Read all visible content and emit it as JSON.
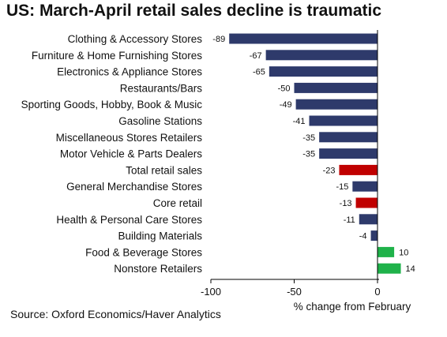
{
  "chart_data": {
    "type": "bar",
    "orientation": "horizontal",
    "title": "US: March-April retail sales decline is traumatic",
    "xlabel": "% change from February",
    "ylabel": "",
    "xlim": [
      -100,
      14
    ],
    "xticks": [
      -100,
      -50,
      0
    ],
    "grid": false,
    "legend": "none",
    "categories": [
      "Clothing & Accessory Stores",
      "Furniture & Home Furnishing Stores",
      "Electronics & Appliance Stores",
      "Restaurants/Bars",
      "Sporting Goods, Hobby, Book & Music",
      "Gasoline Stations",
      "Miscellaneous Stores Retailers",
      "Motor Vehicle & Parts Dealers",
      "Total retail sales",
      "General Merchandise Stores",
      "Core retail",
      "Health & Personal Care Stores",
      "Building Materials",
      "Food & Beverage Stores",
      "Nonstore Retailers"
    ],
    "values": [
      -89,
      -67,
      -65,
      -50,
      -49,
      -41,
      -35,
      -35,
      -23,
      -15,
      -13,
      -11,
      -4,
      10,
      14
    ],
    "bar_colors": [
      "#2e3a6b",
      "#2e3a6b",
      "#2e3a6b",
      "#2e3a6b",
      "#2e3a6b",
      "#2e3a6b",
      "#2e3a6b",
      "#2e3a6b",
      "#c00000",
      "#2e3a6b",
      "#c00000",
      "#2e3a6b",
      "#2e3a6b",
      "#1fb24a",
      "#1fb24a"
    ]
  },
  "source": "Source: Oxford Economics/Haver Analytics"
}
